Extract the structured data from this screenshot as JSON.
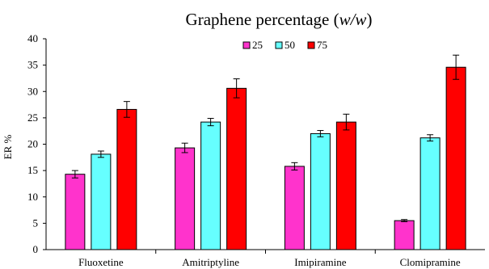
{
  "chart_data": {
    "type": "bar",
    "title": "Graphene percentage (",
    "title_italic": "w/w",
    "title_close": ")",
    "ylabel": "ER %",
    "xlabel": "",
    "ylim": [
      0,
      40
    ],
    "yticks": [
      0,
      5,
      10,
      15,
      20,
      25,
      30,
      35,
      40
    ],
    "categories": [
      "Fluoxetine",
      "Amitriptyline",
      "Imipiramine",
      "Clomipramine"
    ],
    "series": [
      {
        "name": "25",
        "color": "#ff33cc",
        "values": [
          14.3,
          19.3,
          15.8,
          5.5
        ],
        "errors": [
          0.7,
          0.9,
          0.7,
          0.2
        ]
      },
      {
        "name": "50",
        "color": "#66ffff",
        "values": [
          18.1,
          24.2,
          22.0,
          21.2
        ],
        "errors": [
          0.6,
          0.7,
          0.6,
          0.6
        ]
      },
      {
        "name": "75",
        "color": "#ff0000",
        "values": [
          26.6,
          30.6,
          24.2,
          34.6
        ],
        "errors": [
          1.5,
          1.8,
          1.5,
          2.3
        ]
      }
    ],
    "legend_position": "top-center",
    "grid": false
  }
}
